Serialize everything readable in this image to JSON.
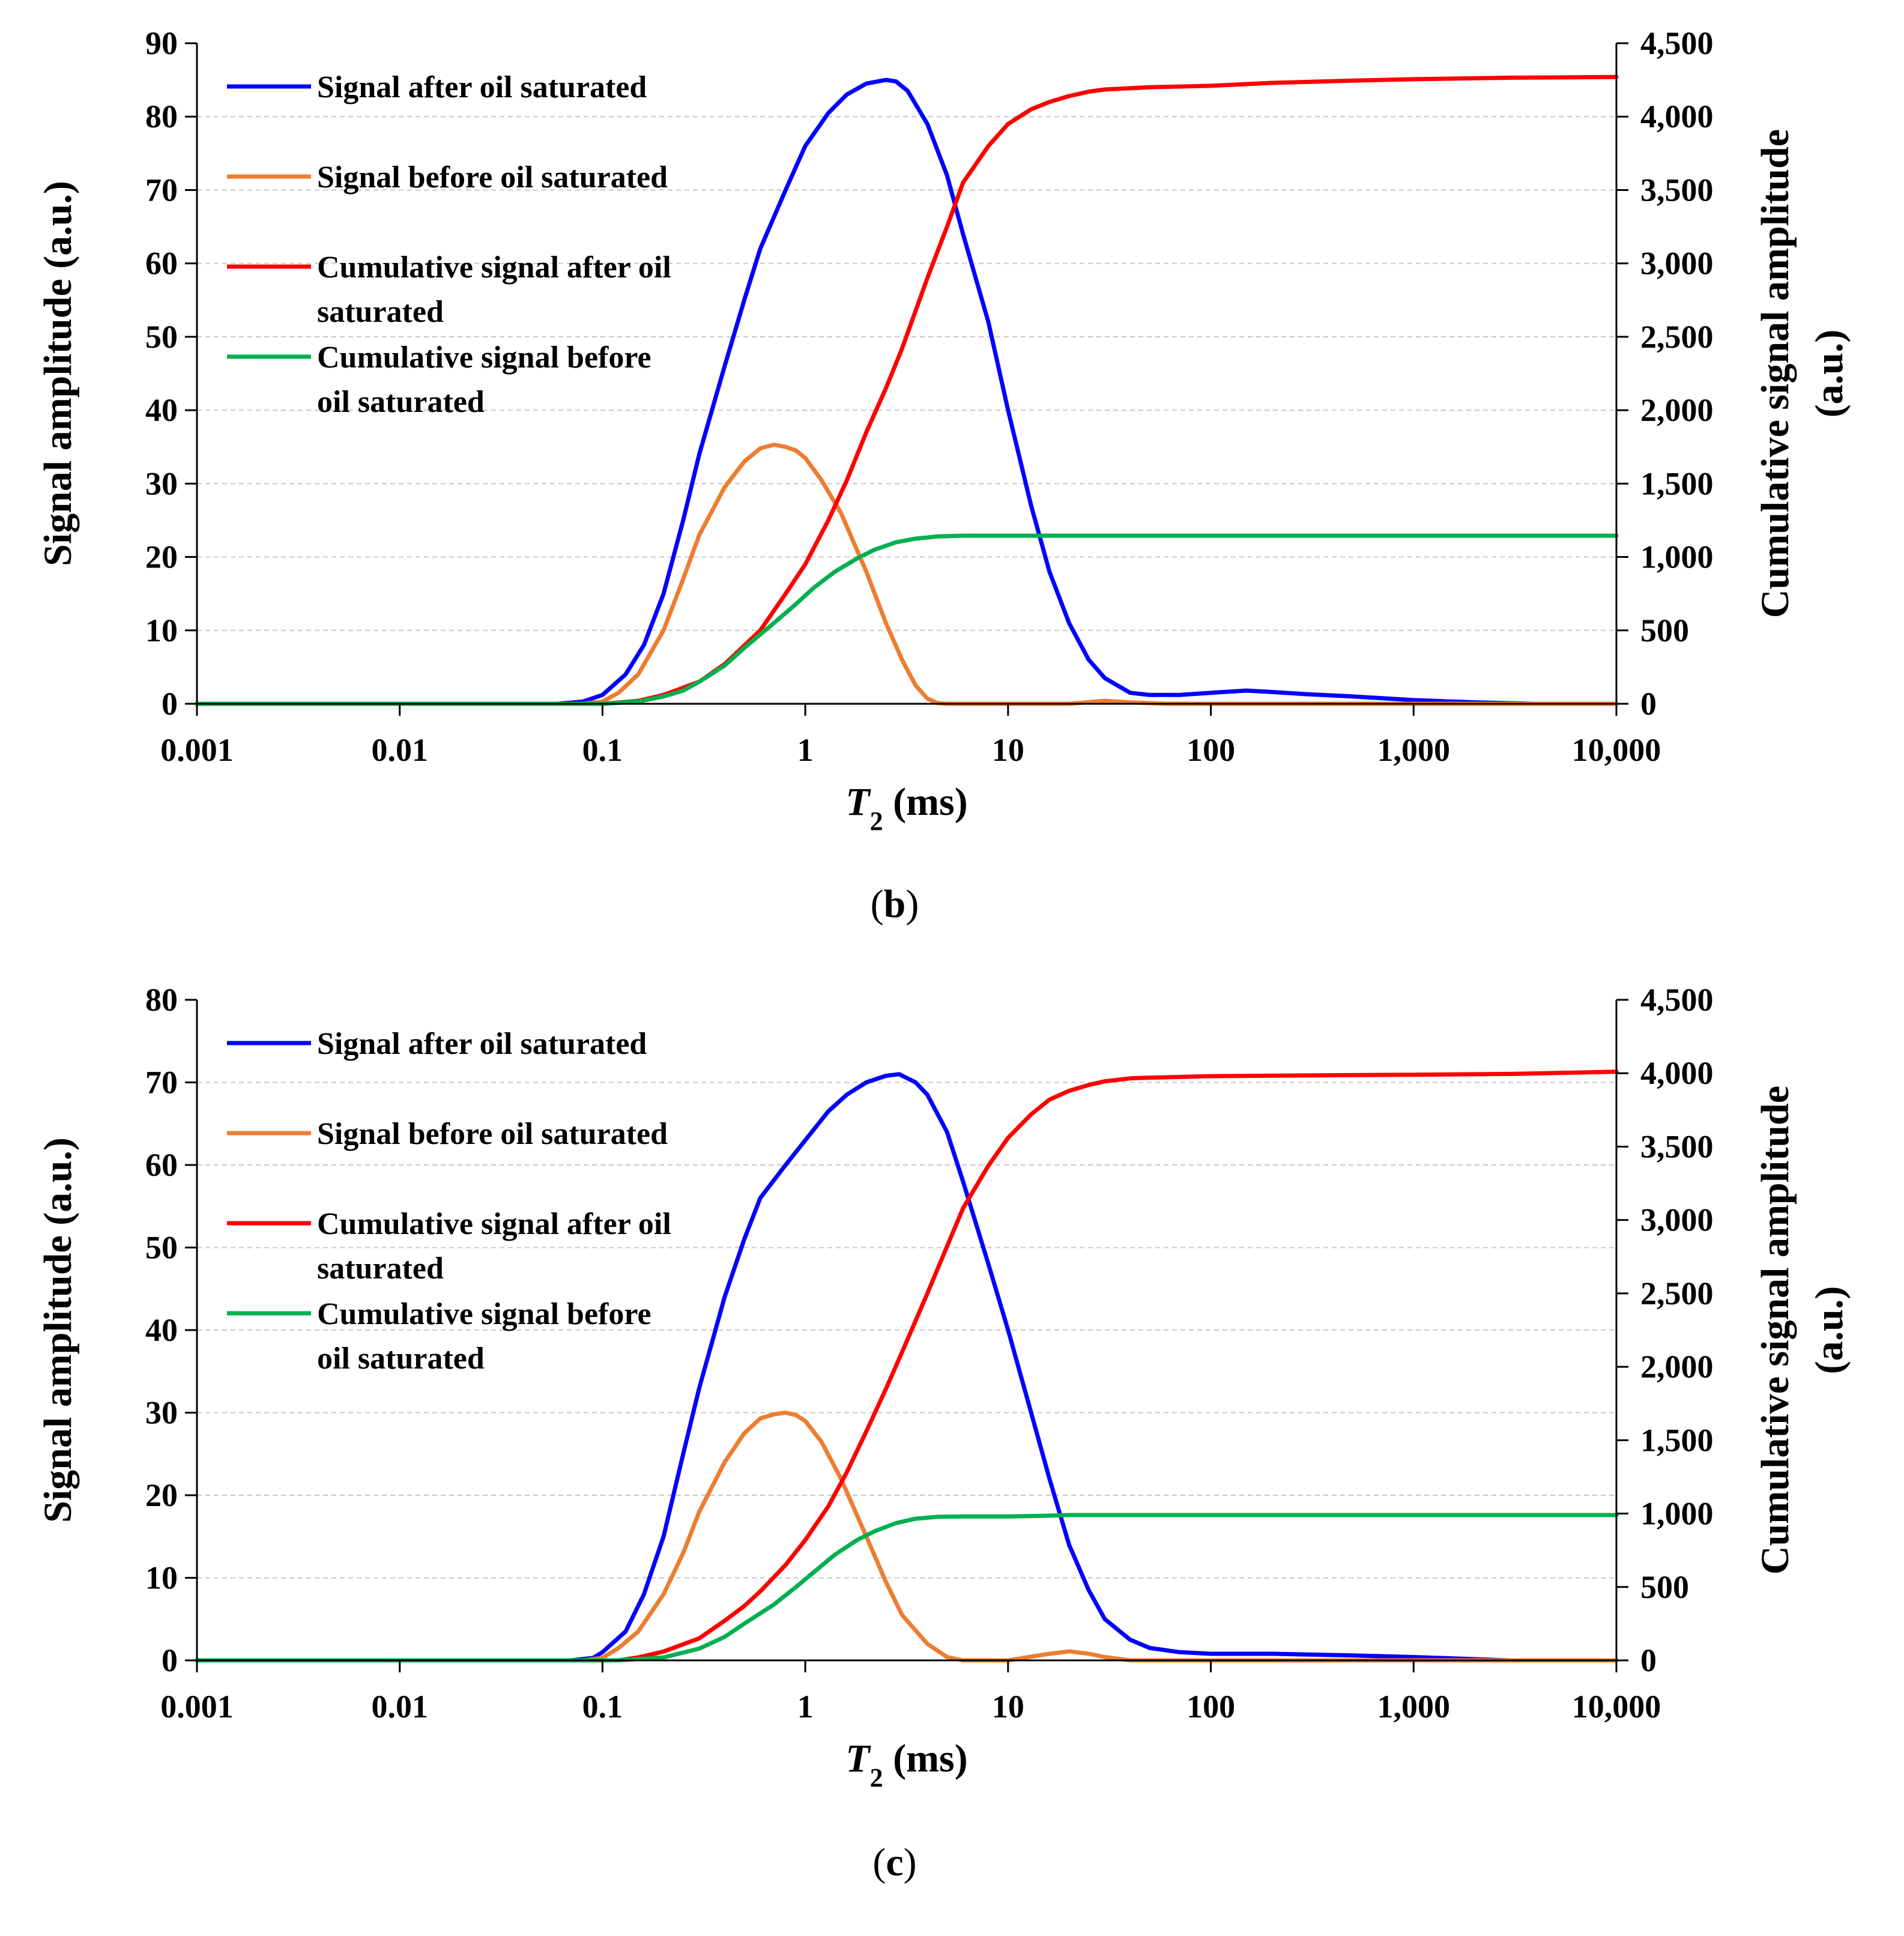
{
  "chart_data": [
    {
      "type": "line",
      "panel_label": "b",
      "x_scale": "log",
      "xlabel": "T2 (ms)",
      "xlabel_italic": "T",
      "xlabel_sub": "2",
      "xlabel_rest": " (ms)",
      "xlim": [
        0.001,
        10000
      ],
      "x_ticks": [
        0.001,
        0.01,
        0.1,
        1,
        10,
        100,
        1000,
        10000
      ],
      "x_tick_labels": [
        "0.001",
        "0.01",
        "0.1",
        "1",
        "10",
        "100",
        "1,000",
        "10,000"
      ],
      "ylabel": "Signal amplitude (a.u.)",
      "ylim": [
        0,
        90
      ],
      "y_ticks": [
        0,
        10,
        20,
        30,
        40,
        50,
        60,
        70,
        80,
        90
      ],
      "y_tick_labels": [
        "0",
        "10",
        "20",
        "30",
        "40",
        "50",
        "60",
        "70",
        "80",
        "90"
      ],
      "y2label_line1": "Cumulative signal amplitude",
      "y2label_line2": "(a.u.)",
      "y2lim": [
        0,
        4500
      ],
      "y2_ticks": [
        0,
        500,
        1000,
        1500,
        2000,
        2500,
        3000,
        3500,
        4000,
        4500
      ],
      "y2_tick_labels": [
        "0",
        "500",
        "1,000",
        "1,500",
        "2,000",
        "2,500",
        "3,000",
        "3,500",
        "4,000",
        "4,500"
      ],
      "grid": true,
      "legend_position": "top-left",
      "series": [
        {
          "name": "Signal after oil saturated",
          "legend_lines": [
            "Signal after oil saturated"
          ],
          "color": "#0000ff",
          "axis": "left",
          "x": [
            0.001,
            0.06,
            0.08,
            0.1,
            0.13,
            0.16,
            0.2,
            0.25,
            0.3,
            0.4,
            0.5,
            0.6,
            0.8,
            1,
            1.3,
            1.6,
            2,
            2.5,
            2.8,
            3.2,
            4,
            5,
            6,
            8,
            10,
            13,
            16,
            20,
            25,
            30,
            40,
            50,
            70,
            100,
            150,
            200,
            300,
            500,
            1000,
            2000,
            4000
          ],
          "y": [
            0,
            0,
            0.3,
            1.2,
            4,
            8,
            15,
            25,
            34,
            46,
            55,
            62,
            70,
            76,
            80.5,
            83,
            84.5,
            85,
            84.8,
            83.5,
            79,
            72,
            64,
            52,
            40,
            27,
            18,
            11,
            6,
            3.5,
            1.5,
            1.2,
            1.2,
            1.5,
            1.8,
            1.6,
            1.3,
            1,
            0.5,
            0.2,
            0
          ]
        },
        {
          "name": "Signal before oil saturated",
          "legend_lines": [
            "Signal before oil saturated"
          ],
          "color": "#ed7d31",
          "axis": "left",
          "x": [
            0.001,
            0.08,
            0.1,
            0.12,
            0.15,
            0.2,
            0.25,
            0.3,
            0.4,
            0.5,
            0.6,
            0.7,
            0.8,
            0.9,
            1,
            1.2,
            1.5,
            2,
            2.5,
            3,
            3.5,
            4,
            4.5,
            5,
            10,
            20,
            30,
            40,
            60,
            10000
          ],
          "y": [
            0,
            0,
            0.3,
            1.5,
            4,
            10,
            17,
            23,
            29.5,
            33,
            34.8,
            35.3,
            35,
            34.5,
            33.5,
            30.5,
            26,
            18,
            11,
            6,
            2.5,
            0.7,
            0.1,
            0,
            0,
            0,
            0.4,
            0.2,
            0,
            0
          ]
        },
        {
          "name": "Cumulative signal after oil saturated",
          "legend_lines": [
            "Cumulative signal after oil",
            "saturated"
          ],
          "color": "#ff0000",
          "axis": "right",
          "x": [
            0.001,
            0.1,
            0.15,
            0.2,
            0.3,
            0.4,
            0.6,
            0.8,
            1,
            1.3,
            1.6,
            2,
            2.5,
            3,
            4,
            5,
            6,
            8,
            10,
            13,
            16,
            20,
            25,
            30,
            50,
            100,
            200,
            500,
            1000,
            3000,
            10000
          ],
          "y": [
            0,
            0,
            20,
            60,
            150,
            270,
            500,
            750,
            950,
            1250,
            1520,
            1850,
            2150,
            2420,
            2900,
            3250,
            3550,
            3800,
            3950,
            4050,
            4100,
            4140,
            4170,
            4185,
            4200,
            4210,
            4230,
            4245,
            4255,
            4265,
            4270
          ]
        },
        {
          "name": "Cumulative signal before oil saturated",
          "legend_lines": [
            "Cumulative signal before",
            "oil saturated"
          ],
          "color": "#00b050",
          "axis": "right",
          "x": [
            0.001,
            0.1,
            0.15,
            0.2,
            0.25,
            0.3,
            0.4,
            0.5,
            0.7,
            0.9,
            1.1,
            1.4,
            1.8,
            2.2,
            2.8,
            3.5,
            4.5,
            6,
            10,
            100,
            10000
          ],
          "y": [
            0,
            0,
            15,
            50,
            90,
            150,
            260,
            380,
            550,
            680,
            790,
            900,
            990,
            1050,
            1100,
            1125,
            1140,
            1145,
            1145,
            1145,
            1145
          ]
        }
      ]
    },
    {
      "type": "line",
      "panel_label": "c",
      "x_scale": "log",
      "xlabel": "T2 (ms)",
      "xlabel_italic": "T",
      "xlabel_sub": "2",
      "xlabel_rest": " (ms)",
      "xlim": [
        0.001,
        10000
      ],
      "x_ticks": [
        0.001,
        0.01,
        0.1,
        1,
        10,
        100,
        1000,
        10000
      ],
      "x_tick_labels": [
        "0.001",
        "0.01",
        "0.1",
        "1",
        "10",
        "100",
        "1,000",
        "10,000"
      ],
      "ylabel": "Signal amplitude (a.u.)",
      "ylim": [
        0,
        80
      ],
      "y_ticks": [
        0,
        10,
        20,
        30,
        40,
        50,
        60,
        70,
        80
      ],
      "y_tick_labels": [
        "0",
        "10",
        "20",
        "30",
        "40",
        "50",
        "60",
        "70",
        "80"
      ],
      "y2label_line1": "Cumulative signal amplitude",
      "y2label_line2": "(a.u.)",
      "y2lim": [
        0,
        4500
      ],
      "y2_ticks": [
        0,
        500,
        1000,
        1500,
        2000,
        2500,
        3000,
        3500,
        4000,
        4500
      ],
      "y2_tick_labels": [
        "0",
        "500",
        "1,000",
        "1,500",
        "2,000",
        "2,500",
        "3,000",
        "3,500",
        "4,000",
        "4,500"
      ],
      "grid": true,
      "legend_position": "top-left",
      "series": [
        {
          "name": "Signal after oil saturated",
          "legend_lines": [
            "Signal after oil saturated"
          ],
          "color": "#0000ff",
          "axis": "left",
          "x": [
            0.001,
            0.07,
            0.09,
            0.1,
            0.13,
            0.16,
            0.2,
            0.25,
            0.3,
            0.4,
            0.5,
            0.6,
            0.8,
            1,
            1.3,
            1.6,
            2,
            2.5,
            2.9,
            3.5,
            4,
            5,
            6,
            8,
            10,
            13,
            16,
            20,
            25,
            30,
            40,
            50,
            70,
            100,
            200,
            500,
            1000,
            3000
          ],
          "y": [
            0,
            0,
            0.3,
            1,
            3.5,
            8,
            15,
            25,
            33,
            44,
            51,
            56,
            60,
            63,
            66.5,
            68.5,
            70,
            70.8,
            71,
            70,
            68.5,
            64,
            58,
            48,
            40,
            30,
            22,
            14,
            8.5,
            5,
            2.5,
            1.5,
            1,
            0.8,
            0.8,
            0.6,
            0.4,
            0
          ]
        },
        {
          "name": "Signal before oil saturated",
          "legend_lines": [
            "Signal before oil saturated"
          ],
          "color": "#ed7d31",
          "axis": "left",
          "x": [
            0.001,
            0.08,
            0.1,
            0.12,
            0.15,
            0.2,
            0.25,
            0.3,
            0.4,
            0.5,
            0.6,
            0.7,
            0.8,
            0.9,
            1,
            1.2,
            1.5,
            2,
            2.5,
            3,
            4,
            5,
            6,
            8,
            10,
            15,
            20,
            25,
            30,
            40,
            10000
          ],
          "y": [
            0,
            0,
            0.3,
            1.5,
            3.5,
            8,
            13,
            18,
            24,
            27.5,
            29.3,
            29.8,
            30,
            29.7,
            29,
            26.5,
            22,
            15,
            9.5,
            5.5,
            2,
            0.4,
            0,
            0,
            0,
            0.7,
            1.1,
            0.8,
            0.4,
            0,
            0
          ]
        },
        {
          "name": "Cumulative signal after oil saturated",
          "legend_lines": [
            "Cumulative signal after oil",
            "saturated"
          ],
          "color": "#ff0000",
          "axis": "right",
          "x": [
            0.001,
            0.12,
            0.15,
            0.2,
            0.3,
            0.4,
            0.5,
            0.6,
            0.8,
            1,
            1.3,
            1.6,
            2,
            2.5,
            3,
            4,
            5,
            6,
            8,
            10,
            13,
            16,
            20,
            25,
            30,
            40,
            50,
            100,
            300,
            1000,
            3000,
            10000
          ],
          "y": [
            0,
            0,
            20,
            60,
            150,
            270,
            370,
            470,
            650,
            820,
            1050,
            1280,
            1560,
            1850,
            2100,
            2500,
            2820,
            3080,
            3370,
            3560,
            3720,
            3820,
            3880,
            3920,
            3945,
            3965,
            3970,
            3980,
            3985,
            3990,
            3995,
            4010
          ]
        },
        {
          "name": "Cumulative signal before oil saturated",
          "legend_lines": [
            "Cumulative signal before",
            "oil saturated"
          ],
          "color": "#00b050",
          "axis": "right",
          "x": [
            0.001,
            0.12,
            0.2,
            0.3,
            0.4,
            0.5,
            0.7,
            0.9,
            1.1,
            1.4,
            1.8,
            2.2,
            2.8,
            3.5,
            4.5,
            6,
            10,
            15,
            20,
            30,
            100,
            10000
          ],
          "y": [
            0,
            0,
            20,
            80,
            160,
            250,
            380,
            500,
            600,
            720,
            820,
            880,
            935,
            965,
            978,
            980,
            980,
            985,
            990,
            990,
            990,
            990
          ]
        }
      ]
    }
  ]
}
